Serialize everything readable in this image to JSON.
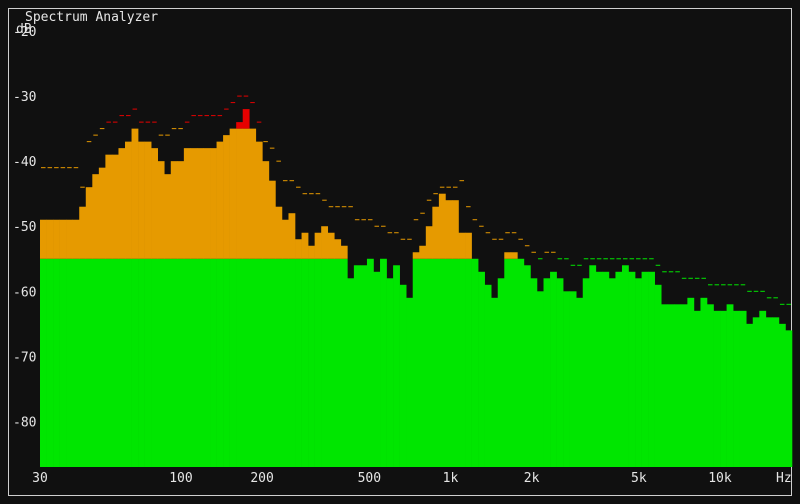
{
  "window": {
    "title": "Spectrum Analyzer"
  },
  "chart_data": {
    "type": "bar",
    "title": "Spectrum Analyzer",
    "ylabel": "dB",
    "xlabel": "Hz",
    "x_scale": "log",
    "xlim": [
      30,
      18500
    ],
    "ylim": [
      -87,
      -18
    ],
    "y_ticks": [
      -20,
      -30,
      -40,
      -50,
      -60,
      -70,
      -80
    ],
    "x_ticks": [
      {
        "value": 30,
        "label": "30"
      },
      {
        "value": 100,
        "label": "100"
      },
      {
        "value": 200,
        "label": "200"
      },
      {
        "value": 500,
        "label": "500"
      },
      {
        "value": 1000,
        "label": "1k"
      },
      {
        "value": 2000,
        "label": "2k"
      },
      {
        "value": 5000,
        "label": "5k"
      },
      {
        "value": 10000,
        "label": "10k"
      }
    ],
    "zones": [
      {
        "name": "normal",
        "below_db": -55,
        "color": "#00e600"
      },
      {
        "name": "warning",
        "below_db": -35,
        "color": "#e69a00"
      },
      {
        "name": "peak",
        "color": "#e60000"
      }
    ],
    "bin_range_hz": [
      30,
      18500
    ],
    "levels_db": [
      -49,
      -49,
      -49,
      -49,
      -49,
      -49,
      -47,
      -44,
      -42,
      -41,
      -39,
      -39,
      -38,
      -37,
      -35,
      -37,
      -37,
      -38,
      -40,
      -42,
      -40,
      -40,
      -38,
      -38,
      -38,
      -38,
      -38,
      -37,
      -36,
      -35,
      -34,
      -32,
      -35,
      -37,
      -40,
      -43,
      -47,
      -49,
      -48,
      -52,
      -51,
      -53,
      -51,
      -50,
      -51,
      -52,
      -53,
      -58,
      -56,
      -56,
      -55,
      -57,
      -55,
      -58,
      -56,
      -59,
      -61,
      -54,
      -53,
      -50,
      -47,
      -45,
      -46,
      -46,
      -51,
      -51,
      -55,
      -57,
      -59,
      -61,
      -58,
      -54,
      -54,
      -55,
      -56,
      -58,
      -60,
      -58,
      -57,
      -58,
      -60,
      -60,
      -61,
      -58,
      -56,
      -57,
      -57,
      -58,
      -57,
      -56,
      -57,
      -58,
      -57,
      -57,
      -59,
      -62,
      -62,
      -62,
      -62,
      -61,
      -63,
      -61,
      -62,
      -63,
      -63,
      -62,
      -63,
      -63,
      -65,
      -64,
      -63,
      -64,
      -64,
      -65,
      -66
    ],
    "peak_hold_db": [
      -41,
      -41,
      -41,
      -41,
      -41,
      -41,
      -44,
      -37,
      -36,
      -35,
      -34,
      -34,
      -33,
      -33,
      -32,
      -34,
      -34,
      -34,
      -36,
      -36,
      -35,
      -35,
      -34,
      -33,
      -33,
      -33,
      -33,
      -33,
      -32,
      -31,
      -30,
      -30,
      -31,
      -34,
      -37,
      -38,
      -40,
      -43,
      -43,
      -44,
      -45,
      -45,
      -45,
      -46,
      -47,
      -47,
      -47,
      -47,
      -49,
      -49,
      -49,
      -50,
      -50,
      -51,
      -51,
      -52,
      -52,
      -49,
      -48,
      -46,
      -45,
      -44,
      -44,
      -44,
      -43,
      -47,
      -49,
      -50,
      -51,
      -52,
      -52,
      -51,
      -51,
      -52,
      -53,
      -54,
      -55,
      -54,
      -54,
      -55,
      -55,
      -56,
      -56,
      -55,
      -55,
      -55,
      -55,
      -55,
      -55,
      -55,
      -55,
      -55,
      -55,
      -55,
      -56,
      -57,
      -57,
      -57,
      -58,
      -58,
      -58,
      -58,
      -59,
      -59,
      -59,
      -59,
      -59,
      -59,
      -60,
      -60,
      -60,
      -61,
      -61,
      -62,
      -62
    ]
  }
}
